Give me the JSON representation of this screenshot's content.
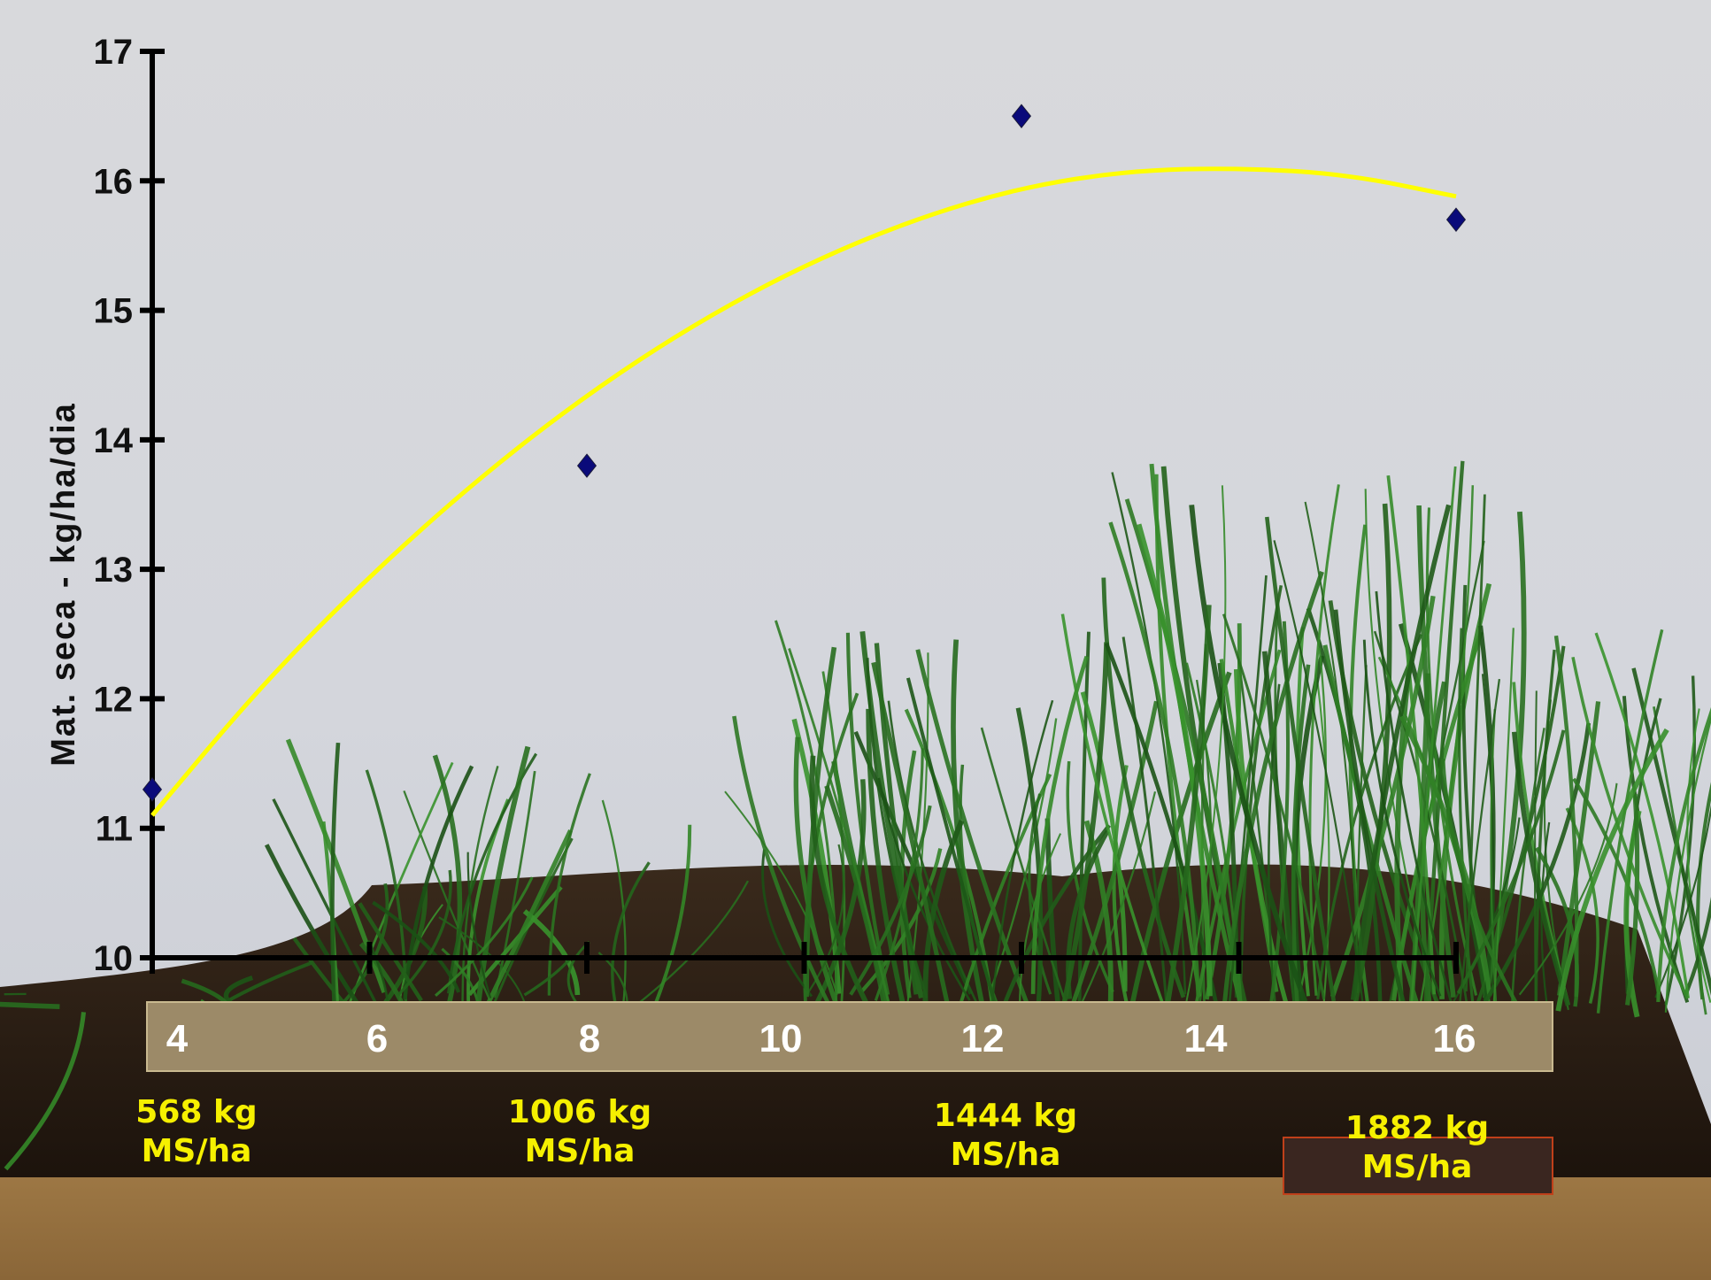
{
  "chart_data": {
    "type": "scatter",
    "ylabel": "Mat. seca - kg/ha/dia",
    "ylim": [
      10,
      17
    ],
    "yticks": [
      "10",
      "11",
      "12",
      "13",
      "14",
      "15",
      "16",
      "17"
    ],
    "xlim": [
      4,
      16
    ],
    "xticks": [
      "4",
      "6",
      "8",
      "10",
      "12",
      "14",
      "16"
    ],
    "grid": false,
    "series": [
      {
        "marker": "diamond",
        "color": "#0a0a7a",
        "x": [
          4,
          8,
          12,
          16
        ],
        "y": [
          11.3,
          13.8,
          16.5,
          15.7
        ]
      }
    ],
    "trendline": {
      "type": "polynomial",
      "color": "#ffff00",
      "x": [
        4,
        5,
        6,
        7,
        8,
        9,
        10,
        11,
        12,
        13,
        14,
        15,
        16
      ],
      "y": [
        11.1,
        12.1,
        12.95,
        13.7,
        14.35,
        14.9,
        15.35,
        15.7,
        15.95,
        16.08,
        16.1,
        16.05,
        15.88
      ]
    },
    "band_labels": [
      "4",
      "6",
      "8",
      "10",
      "12",
      "14",
      "16"
    ],
    "annotations": [
      {
        "line1": "568 kg",
        "line2": "MS/ha"
      },
      {
        "line1": "1006 kg",
        "line2": "MS/ha"
      },
      {
        "line1": "1444 kg",
        "line2": "MS/ha"
      },
      {
        "line1": "1882 kg",
        "line2": "MS/ha"
      }
    ]
  }
}
